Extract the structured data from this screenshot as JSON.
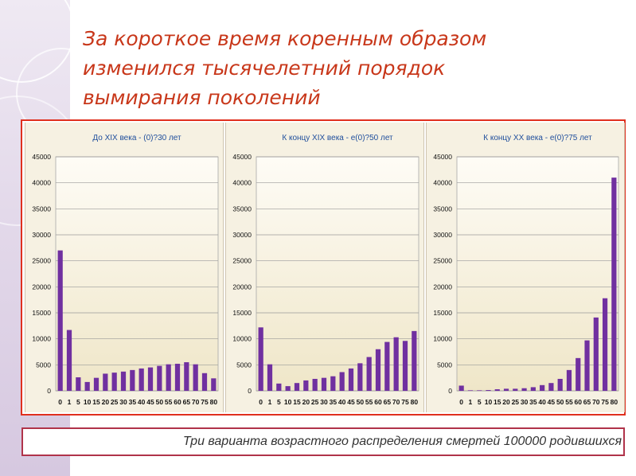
{
  "slide": {
    "title_lines": [
      "За короткое время коренным образом",
      "изменился тысячелетний порядок",
      "вымирания поколений"
    ],
    "caption": "Три варианта возрастного распределения смертей 100000 родившихся"
  },
  "colors": {
    "title": "#c8371a",
    "bar": "#7030a0",
    "chart_title": "#1f4e9c",
    "frame": "#e0301e",
    "plot_bg_top": "#fefcf6",
    "plot_bg_bottom": "#efe6c8"
  },
  "chart_data": [
    {
      "type": "bar",
      "title": "До XIX века - (0)?30 лет",
      "categories": [
        "0",
        "1",
        "5",
        "10",
        "15",
        "20",
        "25",
        "30",
        "35",
        "40",
        "45",
        "50",
        "55",
        "60",
        "65",
        "70",
        "75",
        "80"
      ],
      "values": [
        27000,
        11700,
        2600,
        1700,
        2500,
        3300,
        3500,
        3700,
        4000,
        4300,
        4500,
        4800,
        5100,
        5200,
        5500,
        5100,
        3400,
        2400
      ],
      "ylim": [
        0,
        45000
      ],
      "yticks": [
        "0",
        "5000",
        "10000",
        "15000",
        "20000",
        "25000",
        "30000",
        "35000",
        "40000",
        "45000"
      ],
      "grid": true,
      "legend": "none"
    },
    {
      "type": "bar",
      "title": "К концу XIX века - е(0)?50 лет",
      "categories": [
        "0",
        "1",
        "5",
        "10",
        "15",
        "20",
        "25",
        "30",
        "35",
        "40",
        "45",
        "50",
        "55",
        "60",
        "65",
        "70",
        "75",
        "80"
      ],
      "values": [
        12200,
        5100,
        1400,
        900,
        1500,
        2000,
        2300,
        2500,
        2800,
        3600,
        4300,
        5300,
        6500,
        8000,
        9400,
        10300,
        9600,
        11500
      ],
      "ylim": [
        0,
        45000
      ],
      "yticks": [
        "0",
        "5000",
        "10000",
        "15000",
        "20000",
        "25000",
        "30000",
        "35000",
        "40000",
        "45000"
      ],
      "grid": true,
      "legend": "none"
    },
    {
      "type": "bar",
      "title": "К концу XX века - е(0)?75 лет",
      "categories": [
        "0",
        "1",
        "5",
        "10",
        "15",
        "20",
        "25",
        "30",
        "35",
        "40",
        "45",
        "50",
        "55",
        "60",
        "65",
        "70",
        "75",
        "80"
      ],
      "values": [
        1000,
        100,
        100,
        150,
        300,
        400,
        400,
        500,
        700,
        1100,
        1500,
        2300,
        4000,
        6300,
        9700,
        14100,
        17800,
        41000
      ],
      "ylim": [
        0,
        45000
      ],
      "yticks": [
        "0",
        "5000",
        "10000",
        "15000",
        "20000",
        "25000",
        "30000",
        "35000",
        "40000",
        "45000"
      ],
      "grid": true,
      "legend": "none"
    }
  ]
}
